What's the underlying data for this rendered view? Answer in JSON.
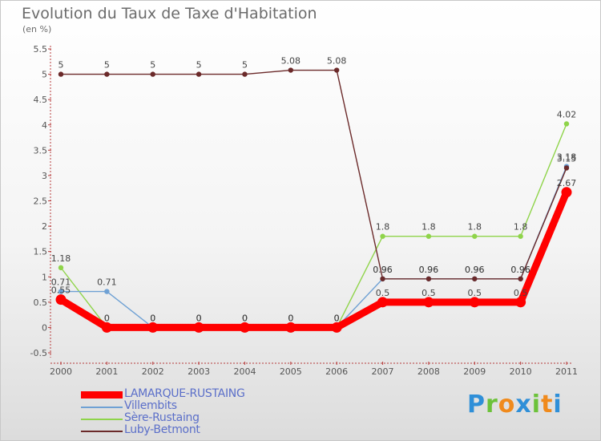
{
  "title": "Evolution du Taux de Taxe d'Habitation",
  "unit": "(en %)",
  "brand": {
    "text": "Proxiti",
    "letter_colors": [
      "#2f8fd8",
      "#6cc23a",
      "#f08a1c",
      "#2f8fd8",
      "#6cc23a",
      "#f08a1c",
      "#2f8fd8"
    ]
  },
  "chart_data": {
    "type": "line",
    "title": "Evolution du Taux de Taxe d'Habitation",
    "ylabel": "(en %)",
    "xlabel": "",
    "x": [
      "2000",
      "2001",
      "2002",
      "2003",
      "2004",
      "2005",
      "2006",
      "2007",
      "2008",
      "2009",
      "2010",
      "2011"
    ],
    "ylim": [
      -0.5,
      5.5
    ],
    "yticks": [
      "-0.5",
      "0",
      "0.5",
      "1",
      "1.5",
      "2",
      "2.5",
      "3",
      "3.5",
      "4",
      "4.5",
      "5",
      "5.5"
    ],
    "grid": false,
    "legend_position": "bottom-left",
    "series": [
      {
        "name": "LAMARQUE-RUSTAING",
        "color": "#ff0000",
        "values": [
          0.55,
          0,
          0,
          0,
          0,
          0,
          0,
          0.5,
          0.5,
          0.5,
          0.5,
          2.67
        ],
        "labels": [
          "0.55",
          "0",
          "0",
          "0",
          "0",
          "0",
          "0",
          "0.5",
          "0.5",
          "0.5",
          "0.5",
          "2.67"
        ]
      },
      {
        "name": "Villembits",
        "color": "#6fa1d4",
        "values": [
          0.71,
          0.71,
          0,
          0,
          0,
          0,
          0,
          0.96,
          0.96,
          0.96,
          0.96,
          3.18
        ],
        "labels": [
          "0.71",
          "0.71",
          "0",
          "0",
          "0",
          "0",
          "0",
          "0.96",
          "0.96",
          "0.96",
          "0.96",
          "3.18"
        ]
      },
      {
        "name": "Sère-Rustaing",
        "color": "#8fd44a",
        "values": [
          1.18,
          0,
          0,
          0,
          0,
          0,
          0,
          1.8,
          1.8,
          1.8,
          1.8,
          4.02
        ],
        "labels": [
          "1.18",
          "0",
          "0",
          "0",
          "0",
          "0",
          "0",
          "1.8",
          "1.8",
          "1.8",
          "1.8",
          "4.02"
        ]
      },
      {
        "name": "Luby-Betmont",
        "color": "#6b2a2a",
        "values": [
          5,
          5,
          5,
          5,
          5,
          5.08,
          5.08,
          0.96,
          0.96,
          0.96,
          0.96,
          3.15
        ],
        "labels": [
          "5",
          "5",
          "5",
          "5",
          "5",
          "5.08",
          "5.08",
          "0.96",
          "0.96",
          "0.96",
          "0.96",
          "3.15"
        ]
      }
    ]
  }
}
